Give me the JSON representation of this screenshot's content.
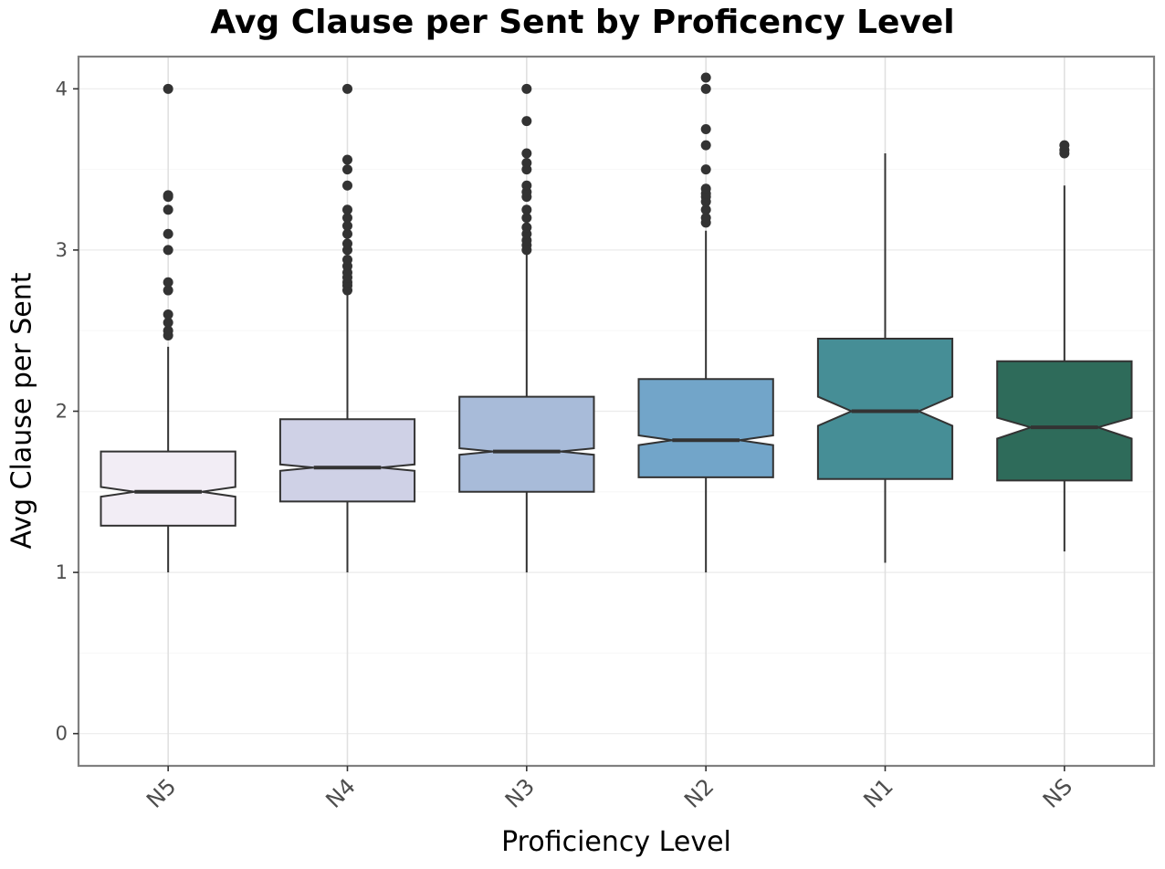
{
  "chart_data": {
    "type": "boxplot",
    "title": "Avg Clause per Sent by Proficency Level",
    "xlabel": "Proficiency Level",
    "ylabel": "Avg Clause per Sent",
    "ylim": [
      -0.2,
      4.2
    ],
    "yticks": [
      0,
      1,
      2,
      3,
      4
    ],
    "notched": true,
    "grid": true,
    "categories": [
      "N5",
      "N4",
      "N3",
      "N2",
      "N1",
      "NS"
    ],
    "boxes": [
      {
        "label": "N5",
        "color": "#f2edf5",
        "min": 1.0,
        "q1": 1.29,
        "median": 1.5,
        "q3": 1.75,
        "max": 2.4,
        "notch_low": 1.47,
        "notch_high": 1.53,
        "outliers": [
          2.47,
          2.5,
          2.55,
          2.6,
          2.75,
          2.8,
          3.0,
          3.1,
          3.25,
          3.33,
          3.34,
          4.0
        ]
      },
      {
        "label": "N4",
        "color": "#cfd1e6",
        "min": 1.0,
        "q1": 1.44,
        "median": 1.65,
        "q3": 1.95,
        "max": 2.73,
        "notch_low": 1.63,
        "notch_high": 1.67,
        "outliers": [
          2.75,
          2.78,
          2.8,
          2.83,
          2.86,
          2.9,
          2.94,
          3.0,
          3.04,
          3.1,
          3.15,
          3.2,
          3.25,
          3.4,
          3.5,
          3.56,
          4.0
        ]
      },
      {
        "label": "N3",
        "color": "#a8bbd9",
        "min": 1.0,
        "q1": 1.5,
        "median": 1.75,
        "q3": 2.09,
        "max": 2.98,
        "notch_low": 1.73,
        "notch_high": 1.77,
        "outliers": [
          3.0,
          3.03,
          3.06,
          3.1,
          3.14,
          3.2,
          3.25,
          3.33,
          3.36,
          3.4,
          3.5,
          3.54,
          3.6,
          3.8,
          4.0
        ]
      },
      {
        "label": "N2",
        "color": "#72a5c9",
        "min": 1.0,
        "q1": 1.59,
        "median": 1.82,
        "q3": 2.2,
        "max": 3.12,
        "notch_low": 1.79,
        "notch_high": 1.85,
        "outliers": [
          3.17,
          3.2,
          3.25,
          3.3,
          3.33,
          3.35,
          3.38,
          3.5,
          3.65,
          3.75,
          4.0,
          4.07
        ]
      },
      {
        "label": "N1",
        "color": "#468e96",
        "min": 1.06,
        "q1": 1.58,
        "median": 2.0,
        "q3": 2.45,
        "max": 3.6,
        "notch_low": 1.91,
        "notch_high": 2.09,
        "outliers": []
      },
      {
        "label": "NS",
        "color": "#2e6b5a",
        "min": 1.13,
        "q1": 1.57,
        "median": 1.9,
        "q3": 2.31,
        "max": 3.4,
        "notch_low": 1.83,
        "notch_high": 1.96,
        "outliers": [
          3.6,
          3.62,
          3.65
        ]
      }
    ]
  }
}
